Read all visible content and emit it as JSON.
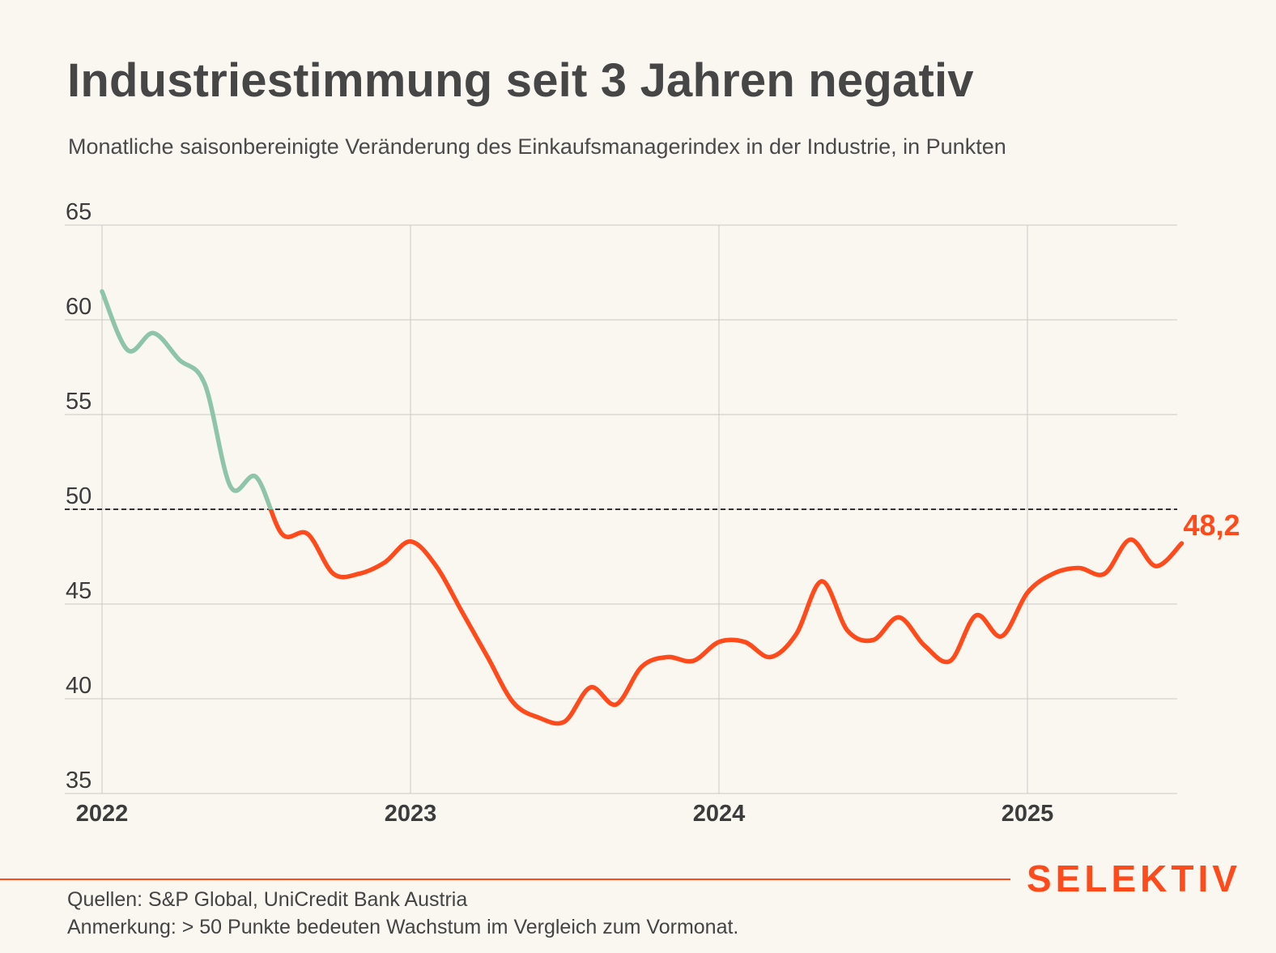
{
  "title": "Industriestimmung seit 3 Jahren negativ",
  "subtitle": "Monatliche saisonbereinigte Veränderung des Einkaufsmanagerindex in der Industrie, in Punkten",
  "footer": {
    "brand": "SELEKTIV",
    "source": "Quellen: S&P Global, UniCredit Bank Austria",
    "note": "Anmerkung: > 50 Punkte bedeuten Wachstum im Vergleich zum Vormonat."
  },
  "colors": {
    "above": "#8ec5a8",
    "below": "#ff4a1c",
    "grid": "#c9c9c4",
    "reference": "#333333",
    "brand": "#ff4a1c"
  },
  "chart_data": {
    "type": "line",
    "title": "Industriestimmung seit 3 Jahren negativ",
    "subtitle": "Monatliche saisonbereinigte Veränderung des Einkaufsmanagerindex in der Industrie, in Punkten",
    "xlabel": "",
    "ylabel": "",
    "ylim": [
      35,
      65
    ],
    "yticks": [
      35,
      40,
      45,
      50,
      55,
      60,
      65
    ],
    "xticks": [
      "2022",
      "2023",
      "2024",
      "2025"
    ],
    "reference_line": 50,
    "grid": true,
    "end_label": "48,2",
    "series": [
      {
        "x": [
          "2022-01",
          "2022-02",
          "2022-03",
          "2022-04",
          "2022-05",
          "2022-06",
          "2022-07",
          "2022-08",
          "2022-09",
          "2022-10",
          "2022-11",
          "2022-12",
          "2023-01",
          "2023-02",
          "2023-03",
          "2023-04",
          "2023-05",
          "2023-06",
          "2023-07",
          "2023-08",
          "2023-09",
          "2023-10",
          "2023-11",
          "2023-12",
          "2024-01",
          "2024-02",
          "2024-03",
          "2024-04",
          "2024-05",
          "2024-06",
          "2024-07",
          "2024-08",
          "2024-09",
          "2024-10",
          "2024-11",
          "2024-12",
          "2025-01",
          "2025-02",
          "2025-03",
          "2025-04",
          "2025-05",
          "2025-06",
          "2025-07"
        ],
        "values": [
          61.5,
          58.4,
          59.3,
          57.9,
          56.6,
          51.2,
          51.7,
          48.7,
          48.7,
          46.6,
          46.6,
          47.2,
          48.3,
          47.0,
          44.6,
          42.2,
          39.8,
          39.0,
          38.8,
          40.6,
          39.7,
          41.7,
          42.2,
          42.0,
          43.0,
          43.0,
          42.2,
          43.4,
          46.2,
          43.6,
          43.1,
          44.3,
          42.8,
          42.0,
          44.4,
          43.3,
          45.6,
          46.6,
          46.9,
          46.6,
          48.4,
          47.0,
          48.2
        ]
      }
    ]
  }
}
